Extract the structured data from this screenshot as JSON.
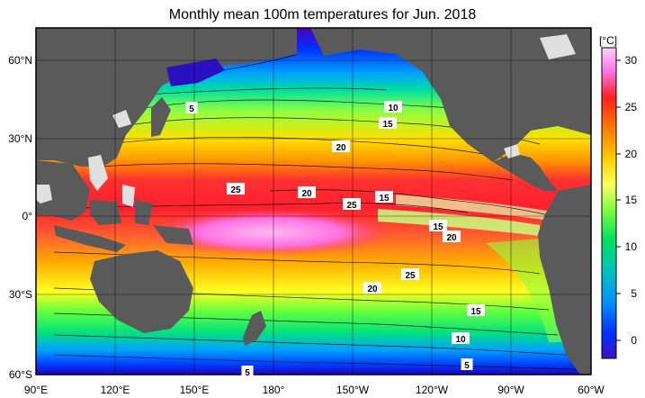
{
  "title": "Monthly mean 100m temperatures for Jun. 2018",
  "colorbar": {
    "unit": "[°C]",
    "ticks": [
      "30",
      "25",
      "20",
      "15",
      "10",
      "5",
      "0"
    ]
  },
  "lon_ticks": [
    "90°E",
    "120°E",
    "150°E",
    "180°",
    "150°W",
    "120°W",
    "90°W",
    "60°W"
  ],
  "lat_ticks": [
    "60°N",
    "30°N",
    "0°",
    "30°S",
    "60°S"
  ],
  "contour_labels": [
    "5",
    "10",
    "15",
    "20",
    "25",
    "20",
    "25",
    "15",
    "15",
    "20",
    "25",
    "20",
    "15",
    "10",
    "5",
    "5"
  ],
  "colors": {
    "land": "#5a5a5a",
    "missing": "#e0e0e0",
    "warm_pool": "#ff99ee"
  }
}
